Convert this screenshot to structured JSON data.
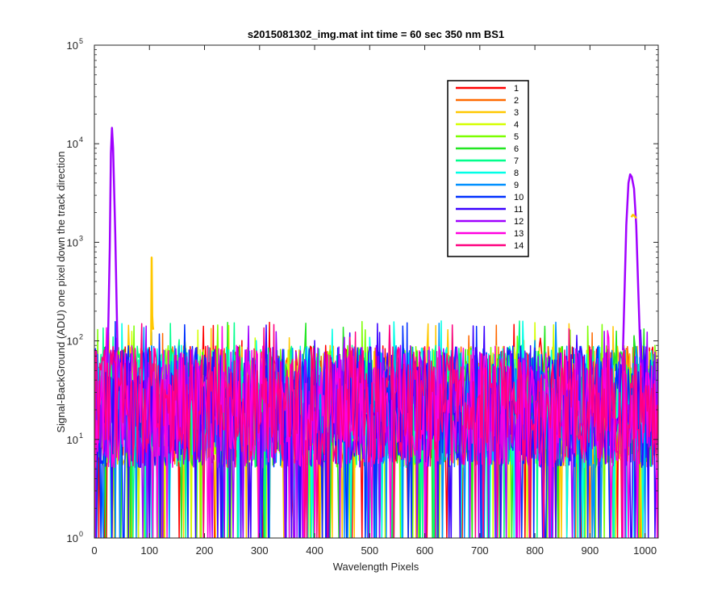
{
  "chart_data": {
    "type": "line",
    "title": "s2015081302_img.mat int time = 60 sec  350 nm BS1",
    "xlabel": "Wavelength Pixels",
    "ylabel": "Signal-BackGround (ADU) one pixel down the track direction",
    "xlim": [
      0,
      1024
    ],
    "ylim": [
      1,
      100000
    ],
    "yscale": "log",
    "grid": false,
    "legend_position": "top-right",
    "x_ticks": [
      "0",
      "100",
      "200",
      "300",
      "400",
      "500",
      "600",
      "700",
      "800",
      "900",
      "1000"
    ],
    "y_ticks": [
      {
        "base": "10",
        "exp": "0"
      },
      {
        "base": "10",
        "exp": "1"
      },
      {
        "base": "10",
        "exp": "2"
      },
      {
        "base": "10",
        "exp": "3"
      },
      {
        "base": "10",
        "exp": "4"
      },
      {
        "base": "10",
        "exp": "5"
      }
    ],
    "x_tick_values": [
      0,
      100,
      200,
      300,
      400,
      500,
      600,
      700,
      800,
      900,
      1000
    ],
    "y_tick_values": [
      1,
      10,
      100,
      1000,
      10000,
      100000
    ],
    "noise_floor": {
      "low": 2,
      "high": 90,
      "x_start": 0,
      "x_end": 1024
    },
    "series": [
      {
        "name": "1",
        "color": "#ff0000"
      },
      {
        "name": "2",
        "color": "#ff6a00"
      },
      {
        "name": "3",
        "color": "#ffc800"
      },
      {
        "name": "4",
        "color": "#d4ff00"
      },
      {
        "name": "5",
        "color": "#7cff00"
      },
      {
        "name": "6",
        "color": "#22e622"
      },
      {
        "name": "7",
        "color": "#00ff8c"
      },
      {
        "name": "8",
        "color": "#00ffe6"
      },
      {
        "name": "9",
        "color": "#0090ff"
      },
      {
        "name": "10",
        "color": "#0030ff"
      },
      {
        "name": "11",
        "color": "#3a00ff"
      },
      {
        "name": "12",
        "color": "#a000ff"
      },
      {
        "name": "13",
        "color": "#ff00e0"
      },
      {
        "name": "14",
        "color": "#ff0080"
      }
    ],
    "peaks": [
      {
        "series": "12",
        "x": [
          24,
          28,
          30,
          32,
          34,
          38,
          42
        ],
        "y": [
          60,
          900,
          8000,
          14500,
          9000,
          1200,
          80
        ]
      },
      {
        "series": "3",
        "x": [
          103,
          104,
          105,
          106,
          107
        ],
        "y": [
          90,
          700,
          180,
          140,
          130
        ]
      },
      {
        "series": "12",
        "x": [
          960,
          966,
          970,
          973,
          976,
          980,
          984,
          988,
          992
        ],
        "y": [
          80,
          1500,
          4000,
          4900,
          4600,
          3500,
          1500,
          300,
          60
        ]
      },
      {
        "series": "3",
        "x": [
          975,
          978,
          981,
          984
        ],
        "y": [
          1800,
          1900,
          1850,
          1750
        ]
      }
    ]
  }
}
